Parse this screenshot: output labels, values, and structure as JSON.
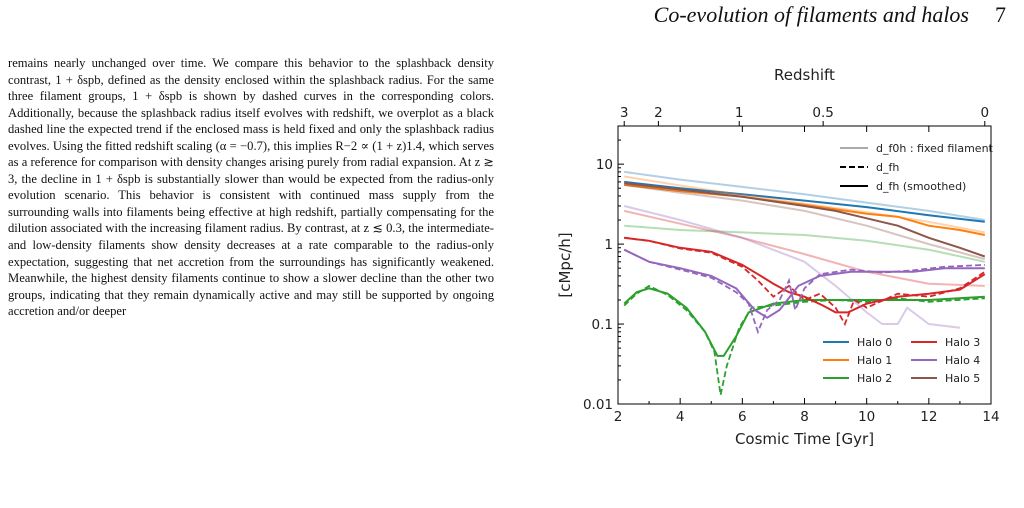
{
  "header": {
    "running_title": "Co-evolution of filaments and halos",
    "page_number": "7"
  },
  "body_text": "remains nearly unchanged over time. We compare this behavior to the splashback density contrast, 1 + δspb, defined as the density enclosed within the splashback radius. For the same three filament groups, 1 + δspb is shown by dashed curves in the corresponding colors. Additionally, because the splashback radius itself evolves with redshift, we overplot as a black dashed line the expected trend if the enclosed mass is held fixed and only the splashback radius evolves. Using the fitted redshift scaling (α = −0.7), this implies R−2 ∝ (1 + z)1.4, which serves as a reference for comparison with density changes arising purely from radial expansion. At z ≳ 3, the decline in 1 + δspb is substantially slower than would be expected from the radius-only evolution scenario. This behavior is consistent with continued mass supply from the surrounding walls into filaments being effective at high redshift, partially compensating for the dilution associated with the increasing filament radius. By contrast, at z ≲ 0.3, the intermediate- and low-density filaments show density decreases at a rate comparable to the radius-only expectation, suggesting that net accretion from the surroundings has significantly weakened. Meanwhile, the highest density filaments continue to show a slower decline than the other two groups, indicating that they remain dynamically active and may still be supported by ongoing accretion and/or deeper",
  "chart_data": {
    "type": "line",
    "xlabel": "Cosmic Time [Gyr]",
    "ylabel": "[cMpc/h]",
    "top_axis_label": "Redshift",
    "xlim": [
      2,
      14
    ],
    "ylim": [
      0.01,
      30
    ],
    "yscale": "log",
    "x_ticks": [
      "2",
      "4",
      "6",
      "8",
      "10",
      "12",
      "14"
    ],
    "y_ticks": [
      {
        "value": 0.01,
        "label": "0.01"
      },
      {
        "value": 0.1,
        "label": "0.1"
      },
      {
        "value": 1,
        "label": "1"
      },
      {
        "value": 10,
        "label": "10"
      }
    ],
    "top_ticks": [
      {
        "t": 2.2,
        "label": "3"
      },
      {
        "t": 3.3,
        "label": "2"
      },
      {
        "t": 5.9,
        "label": "1"
      },
      {
        "t": 8.6,
        "label": "0.5"
      },
      {
        "t": 13.8,
        "label": "0"
      }
    ],
    "style_legend": {
      "placement": "top-right",
      "entries": [
        {
          "style": "faint",
          "label": "d_f0h : fixed filament"
        },
        {
          "style": "dashed",
          "label": "d_fh"
        },
        {
          "style": "solid",
          "label": "d_fh (smoothed)"
        }
      ]
    },
    "halo_legend": {
      "placement": "lower-right",
      "entries": [
        {
          "label": "Halo 0",
          "color": "#1f77b4"
        },
        {
          "label": "Halo 3",
          "color": "#d62728"
        },
        {
          "label": "Halo 1",
          "color": "#ff7f0e"
        },
        {
          "label": "Halo 4",
          "color": "#9467bd"
        },
        {
          "label": "Halo 2",
          "color": "#2ca02c"
        },
        {
          "label": "Halo 5",
          "color": "#8c564b"
        }
      ]
    },
    "series": [
      {
        "name": "Halo 0",
        "color": "#1f77b4",
        "smoothed": [
          [
            2.2,
            6.0
          ],
          [
            4,
            5.0
          ],
          [
            6,
            4.2
          ],
          [
            8,
            3.5
          ],
          [
            10,
            2.9
          ],
          [
            12,
            2.3
          ],
          [
            13.8,
            1.9
          ]
        ],
        "fixed": [
          [
            2.2,
            8.0
          ],
          [
            4,
            6.4
          ],
          [
            6,
            5.2
          ],
          [
            8,
            4.2
          ],
          [
            10,
            3.3
          ],
          [
            12,
            2.6
          ],
          [
            13.8,
            2.0
          ]
        ]
      },
      {
        "name": "Halo 1",
        "color": "#ff7f0e",
        "smoothed": [
          [
            2.2,
            5.5
          ],
          [
            4,
            4.6
          ],
          [
            6,
            3.9
          ],
          [
            8,
            3.1
          ],
          [
            10,
            2.4
          ],
          [
            11,
            2.2
          ],
          [
            12,
            1.7
          ],
          [
            13,
            1.5
          ],
          [
            13.8,
            1.3
          ]
        ],
        "fixed": [
          [
            2.2,
            7.0
          ],
          [
            4,
            5.4
          ],
          [
            6,
            4.1
          ],
          [
            8,
            3.2
          ],
          [
            10,
            2.5
          ],
          [
            12,
            1.9
          ],
          [
            13.8,
            1.4
          ]
        ]
      },
      {
        "name": "Halo 2",
        "color": "#2ca02c",
        "smoothed": [
          [
            2.2,
            0.18
          ],
          [
            2.6,
            0.25
          ],
          [
            3,
            0.28
          ],
          [
            3.6,
            0.24
          ],
          [
            4.2,
            0.16
          ],
          [
            4.8,
            0.08
          ],
          [
            5.2,
            0.04
          ],
          [
            5.4,
            0.04
          ],
          [
            5.8,
            0.07
          ],
          [
            6.2,
            0.14
          ],
          [
            7,
            0.18
          ],
          [
            8,
            0.2
          ],
          [
            9,
            0.2
          ],
          [
            10,
            0.2
          ],
          [
            11,
            0.2
          ],
          [
            12,
            0.2
          ],
          [
            13.8,
            0.22
          ]
        ],
        "dashed": [
          [
            2.2,
            0.17
          ],
          [
            2.6,
            0.24
          ],
          [
            3,
            0.3
          ],
          [
            3.6,
            0.23
          ],
          [
            4.2,
            0.15
          ],
          [
            4.8,
            0.08
          ],
          [
            5.1,
            0.045
          ],
          [
            5.3,
            0.013
          ],
          [
            5.5,
            0.03
          ],
          [
            5.9,
            0.09
          ],
          [
            6.3,
            0.16
          ],
          [
            7,
            0.17
          ],
          [
            8,
            0.19
          ],
          [
            9,
            0.2
          ],
          [
            10,
            0.19
          ],
          [
            11,
            0.21
          ],
          [
            12,
            0.19
          ],
          [
            13.8,
            0.21
          ]
        ],
        "fixed": [
          [
            2.2,
            1.7
          ],
          [
            4,
            1.5
          ],
          [
            6,
            1.4
          ],
          [
            8,
            1.3
          ],
          [
            10,
            1.1
          ],
          [
            12,
            0.85
          ],
          [
            13.8,
            0.6
          ]
        ]
      },
      {
        "name": "Halo 3",
        "color": "#d62728",
        "smoothed": [
          [
            2.2,
            1.2
          ],
          [
            3,
            1.1
          ],
          [
            4,
            0.9
          ],
          [
            5,
            0.8
          ],
          [
            6,
            0.55
          ],
          [
            6.5,
            0.42
          ],
          [
            7,
            0.32
          ],
          [
            7.5,
            0.25
          ],
          [
            8,
            0.22
          ],
          [
            8.6,
            0.17
          ],
          [
            9,
            0.14
          ],
          [
            9.4,
            0.14
          ],
          [
            10,
            0.18
          ],
          [
            11,
            0.22
          ],
          [
            12,
            0.24
          ],
          [
            13,
            0.27
          ],
          [
            13.8,
            0.42
          ]
        ],
        "dashed": [
          [
            2.2,
            1.2
          ],
          [
            3,
            1.1
          ],
          [
            4,
            0.88
          ],
          [
            5,
            0.78
          ],
          [
            6,
            0.52
          ],
          [
            6.5,
            0.35
          ],
          [
            7,
            0.22
          ],
          [
            7.5,
            0.3
          ],
          [
            8,
            0.2
          ],
          [
            8.5,
            0.24
          ],
          [
            9,
            0.16
          ],
          [
            9.3,
            0.1
          ],
          [
            9.6,
            0.2
          ],
          [
            10,
            0.16
          ],
          [
            11,
            0.24
          ],
          [
            12,
            0.22
          ],
          [
            13,
            0.28
          ],
          [
            13.8,
            0.45
          ]
        ],
        "fixed": [
          [
            2.2,
            2.6
          ],
          [
            4,
            1.8
          ],
          [
            6,
            1.2
          ],
          [
            8,
            0.75
          ],
          [
            10,
            0.45
          ],
          [
            12,
            0.32
          ],
          [
            13.8,
            0.3
          ]
        ]
      },
      {
        "name": "Halo 4",
        "color": "#9467bd",
        "smoothed": [
          [
            2.2,
            0.85
          ],
          [
            3,
            0.6
          ],
          [
            4,
            0.5
          ],
          [
            5,
            0.4
          ],
          [
            5.8,
            0.28
          ],
          [
            6.4,
            0.15
          ],
          [
            6.8,
            0.12
          ],
          [
            7.2,
            0.15
          ],
          [
            7.8,
            0.3
          ],
          [
            8.5,
            0.4
          ],
          [
            9.5,
            0.45
          ],
          [
            10.5,
            0.45
          ],
          [
            11.5,
            0.45
          ],
          [
            12.5,
            0.5
          ],
          [
            13.8,
            0.5
          ]
        ],
        "dashed": [
          [
            2.2,
            0.85
          ],
          [
            3,
            0.6
          ],
          [
            4,
            0.48
          ],
          [
            5,
            0.38
          ],
          [
            5.8,
            0.25
          ],
          [
            6.2,
            0.18
          ],
          [
            6.5,
            0.08
          ],
          [
            6.8,
            0.15
          ],
          [
            7.2,
            0.2
          ],
          [
            7.5,
            0.35
          ],
          [
            7.7,
            0.15
          ],
          [
            8,
            0.28
          ],
          [
            8.5,
            0.42
          ],
          [
            9.5,
            0.48
          ],
          [
            10.5,
            0.44
          ],
          [
            11.5,
            0.47
          ],
          [
            12.5,
            0.52
          ],
          [
            13.8,
            0.55
          ]
        ],
        "fixed": [
          [
            2.2,
            3.0
          ],
          [
            4,
            2.0
          ],
          [
            6,
            1.2
          ],
          [
            8,
            0.6
          ],
          [
            9,
            0.3
          ],
          [
            10,
            0.14
          ],
          [
            10.5,
            0.1
          ],
          [
            11,
            0.1
          ],
          [
            11.3,
            0.16
          ],
          [
            12,
            0.1
          ],
          [
            13,
            0.09
          ]
        ]
      },
      {
        "name": "Halo 5",
        "color": "#8c564b",
        "smoothed": [
          [
            2.2,
            5.8
          ],
          [
            4,
            4.8
          ],
          [
            6,
            3.9
          ],
          [
            8,
            3.0
          ],
          [
            9,
            2.6
          ],
          [
            10,
            2.1
          ],
          [
            11,
            1.7
          ],
          [
            12,
            1.2
          ],
          [
            13,
            0.9
          ],
          [
            13.8,
            0.7
          ]
        ],
        "fixed": [
          [
            2.2,
            5.5
          ],
          [
            4,
            4.4
          ],
          [
            6,
            3.5
          ],
          [
            8,
            2.6
          ],
          [
            10,
            1.7
          ],
          [
            12,
            1.0
          ],
          [
            13.8,
            0.65
          ]
        ]
      }
    ]
  }
}
